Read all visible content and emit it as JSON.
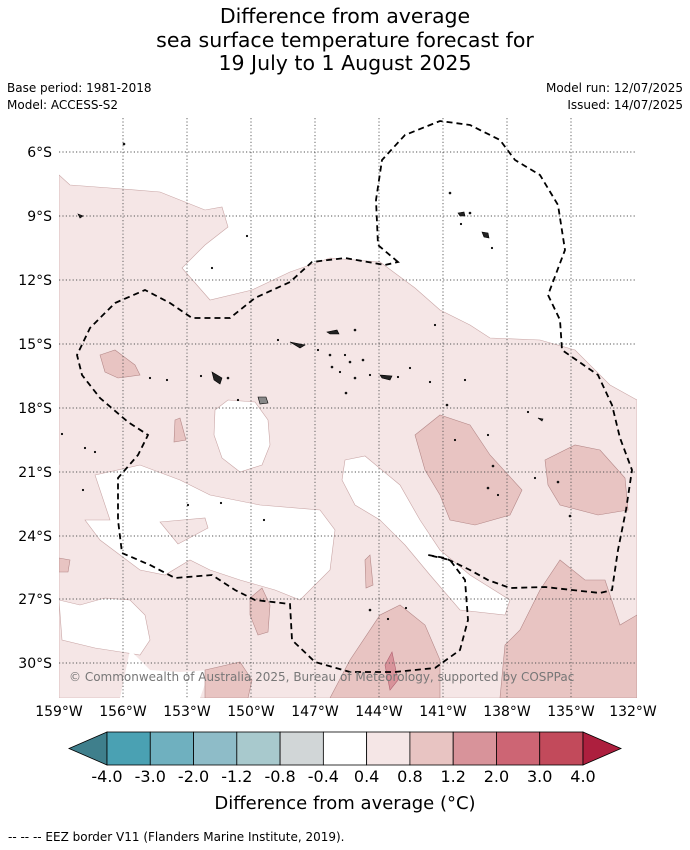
{
  "title_lines": [
    "Difference from average",
    "sea surface temperature forecast for",
    "19 July to 1 August 2025"
  ],
  "left_info": {
    "base_period": "Base period: 1981-2018",
    "model": "Model: ACCESS-S2"
  },
  "right_info": {
    "model_run": "Model run: 12/07/2025",
    "issued": "Issued: 14/07/2025"
  },
  "map": {
    "lon_ticks": [
      "159°W",
      "156°W",
      "153°W",
      "150°W",
      "147°W",
      "144°W",
      "141°W",
      "138°W",
      "135°W",
      "132°W"
    ],
    "lat_ticks": [
      "6°S",
      "9°S",
      "12°S",
      "15°S",
      "18°S",
      "21°S",
      "24°S",
      "27°S",
      "30°S"
    ],
    "copyright": "© Commonwealth of Australia 2025, Bureau of Meteorology, supported by COSPPac"
  },
  "colorbar": {
    "ticks": [
      "-4.0",
      "-3.0",
      "-2.0",
      "-1.2",
      "-0.8",
      "-0.4",
      "0.4",
      "0.8",
      "1.2",
      "2.0",
      "3.0",
      "4.0"
    ],
    "colors": [
      "#3f7f8c",
      "#4aa1b3",
      "#6fb0bf",
      "#8ebcc8",
      "#a8c9cd",
      "#d1d6d7",
      "#ffffff",
      "#f5e6e6",
      "#e8c4c2",
      "#d8939a",
      "#cd6574",
      "#c24a5b",
      "#ad1f3e"
    ],
    "label": "Difference from average (°C)"
  },
  "footer": "--  --  -- EEZ border V11 (Flanders Marine Institute, 2019)."
}
